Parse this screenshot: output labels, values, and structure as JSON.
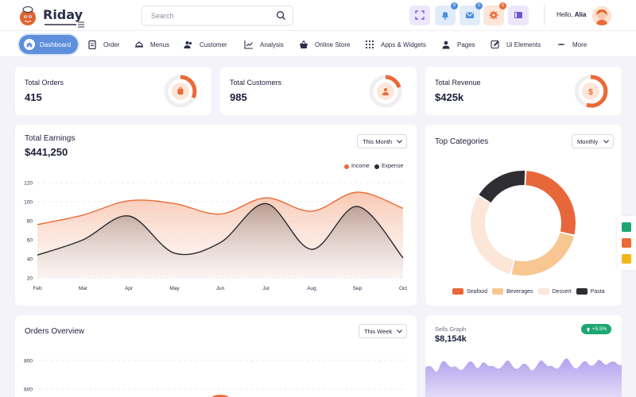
{
  "brand": {
    "name": "Riday",
    "accent": "#ea6a36",
    "primary": "#5e8fdc"
  },
  "header": {
    "search_placeholder": "Search",
    "notification_count": "0",
    "message_count": "0",
    "settings_count": "0",
    "greeting": "Hello,",
    "user_name": "Alia"
  },
  "nav": {
    "items": [
      {
        "label": "Dashboard",
        "icon": "home-icon",
        "active": true
      },
      {
        "label": "Order",
        "icon": "clipboard-icon"
      },
      {
        "label": "Menus",
        "icon": "menu-dish-icon"
      },
      {
        "label": "Customer",
        "icon": "users-icon"
      },
      {
        "label": "Analysis",
        "icon": "chart-line-icon"
      },
      {
        "label": "Online Store",
        "icon": "basket-icon"
      },
      {
        "label": "Apps & Widgets",
        "icon": "grid-icon"
      },
      {
        "label": "Pages",
        "icon": "user-icon"
      },
      {
        "label": "Ui Elements",
        "icon": "edit-icon"
      },
      {
        "label": "More",
        "icon": "plus-icon"
      }
    ]
  },
  "stats": [
    {
      "label": "Total Orders",
      "value": "415",
      "icon": "bag-icon"
    },
    {
      "label": "Total Customers",
      "value": "985",
      "icon": "person-icon"
    },
    {
      "label": "Total Revenue",
      "value": "$425k",
      "icon": "dollar-icon",
      "icon_text": "$"
    }
  ],
  "earnings": {
    "title": "Total Earnings",
    "amount": "$441,250",
    "period": "This Month"
  },
  "categories": {
    "title": "Top Categories",
    "period": "Monthly"
  },
  "orders_overview": {
    "title": "Orders Overview",
    "period": "This Week"
  },
  "sells_graph": {
    "title": "Sells Graph",
    "amount": "$8,154k",
    "change": "+5.5%"
  },
  "chart_data": [
    {
      "type": "area",
      "title": "",
      "categories": [
        "Feb",
        "Mar",
        "Apr",
        "May",
        "Jun",
        "Jul",
        "Aug",
        "Sep",
        "Oct"
      ],
      "ylim": [
        20,
        120
      ],
      "yticks": [
        20,
        40,
        60,
        80,
        100,
        120
      ],
      "grid": true,
      "legend": "top-right",
      "series": [
        {
          "name": "Income",
          "color": "#ea6a36",
          "values": [
            76,
            86,
            101,
            98,
            87,
            104,
            90,
            110,
            93
          ]
        },
        {
          "name": "Expense",
          "color": "#2b2b2f",
          "values": [
            44,
            60,
            85,
            46,
            57,
            98,
            50,
            95,
            41
          ]
        }
      ]
    },
    {
      "type": "pie",
      "title": "",
      "legend": "bottom",
      "series": [
        {
          "name": "Seafood",
          "color": "#e8673a",
          "value": 28
        },
        {
          "name": "Beverages",
          "color": "#f8c691",
          "value": 25
        },
        {
          "name": "Dessert",
          "color": "#fbe6d8",
          "value": 30
        },
        {
          "name": "Pasta",
          "color": "#2f2f33",
          "value": 17
        }
      ]
    },
    {
      "type": "bar",
      "title": "",
      "ylim": [
        400,
        800
      ],
      "yticks": [
        600,
        800
      ],
      "categories": [
        ""
      ],
      "values": [
        560
      ]
    }
  ]
}
